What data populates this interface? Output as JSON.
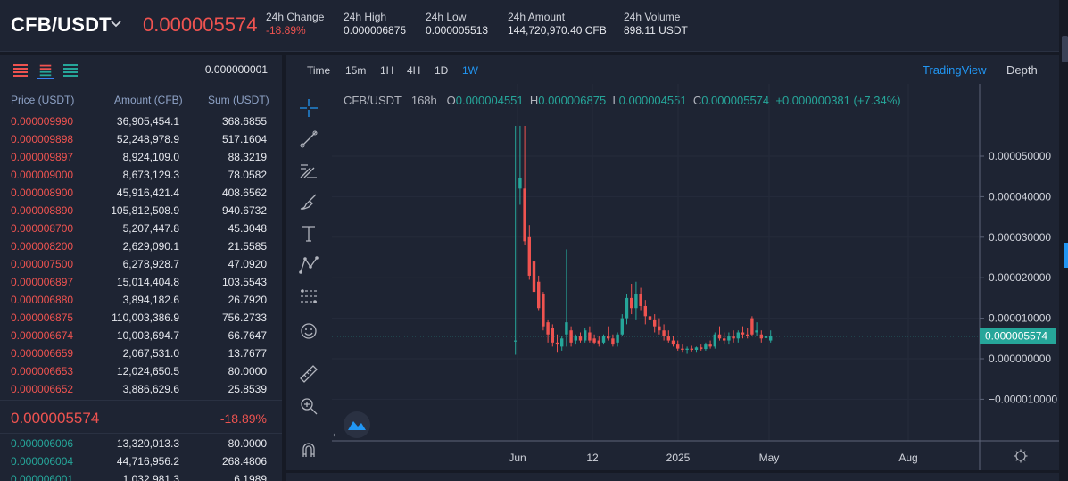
{
  "header": {
    "pair": "CFB/USDT",
    "last_price": "0.000005574",
    "stats": [
      {
        "label": "24h Change",
        "value": "-18.89%",
        "neg": true
      },
      {
        "label": "24h High",
        "value": "0.000006875",
        "neg": false
      },
      {
        "label": "24h Low",
        "value": "0.000005513",
        "neg": false
      },
      {
        "label": "24h Amount",
        "value": "144,720,970.40 CFB",
        "neg": false
      },
      {
        "label": "24h Volume",
        "value": "898.11 USDT",
        "neg": false
      }
    ]
  },
  "orderbook": {
    "precision": "0.000000001",
    "headers": {
      "price": "Price (USDT)",
      "amount": "Amount (CFB)",
      "sum": "Sum (USDT)"
    },
    "asks": [
      {
        "price": "0.000009990",
        "amount": "36,905,454.1",
        "sum": "368.6855"
      },
      {
        "price": "0.000009898",
        "amount": "52,248,978.9",
        "sum": "517.1604"
      },
      {
        "price": "0.000009897",
        "amount": "8,924,109.0",
        "sum": "88.3219"
      },
      {
        "price": "0.000009000",
        "amount": "8,673,129.3",
        "sum": "78.0582"
      },
      {
        "price": "0.000008900",
        "amount": "45,916,421.4",
        "sum": "408.6562"
      },
      {
        "price": "0.000008890",
        "amount": "105,812,508.9",
        "sum": "940.6732"
      },
      {
        "price": "0.000008700",
        "amount": "5,207,447.8",
        "sum": "45.3048"
      },
      {
        "price": "0.000008200",
        "amount": "2,629,090.1",
        "sum": "21.5585"
      },
      {
        "price": "0.000007500",
        "amount": "6,278,928.7",
        "sum": "47.0920"
      },
      {
        "price": "0.000006897",
        "amount": "15,014,404.8",
        "sum": "103.5543"
      },
      {
        "price": "0.000006880",
        "amount": "3,894,182.6",
        "sum": "26.7920"
      },
      {
        "price": "0.000006875",
        "amount": "110,003,386.9",
        "sum": "756.2733"
      },
      {
        "price": "0.000006674",
        "amount": "10,003,694.7",
        "sum": "66.7647"
      },
      {
        "price": "0.000006659",
        "amount": "2,067,531.0",
        "sum": "13.7677"
      },
      {
        "price": "0.000006653",
        "amount": "12,024,650.5",
        "sum": "80.0000"
      },
      {
        "price": "0.000006652",
        "amount": "3,886,629.6",
        "sum": "25.8539"
      }
    ],
    "mid": {
      "price": "0.000005574",
      "change": "-18.89%"
    },
    "bids": [
      {
        "price": "0.000006006",
        "amount": "13,320,013.3",
        "sum": "80.0000"
      },
      {
        "price": "0.000006004",
        "amount": "44,716,956.2",
        "sum": "268.4806"
      },
      {
        "price": "0.000006001",
        "amount": "1,032,981.3",
        "sum": "6.1989"
      }
    ]
  },
  "chart": {
    "timeframes": [
      {
        "label": "Time",
        "active": false
      },
      {
        "label": "15m",
        "active": false
      },
      {
        "label": "1H",
        "active": false
      },
      {
        "label": "4H",
        "active": false
      },
      {
        "label": "1D",
        "active": false
      },
      {
        "label": "1W",
        "active": true
      }
    ],
    "tabs": {
      "tradingview": "TradingView",
      "depth": "Depth"
    },
    "ohlc": {
      "symbol": "CFB/USDT",
      "interval": "168h",
      "o_label": "O",
      "o": "0.000004551",
      "h_label": "H",
      "h": "0.000006875",
      "l_label": "L",
      "l": "0.000004551",
      "c_label": "C",
      "c": "0.000005574",
      "change": "+0.000000381 (+7.34%)"
    },
    "tools": [
      "crosshair-icon",
      "trend-line-icon",
      "fib-icon",
      "brush-icon",
      "text-icon",
      "pattern-icon",
      "prediction-icon",
      "emoji-icon",
      "ruler-icon",
      "zoom-icon",
      "magnet-icon"
    ],
    "colors": {
      "up": "#26a69a",
      "down": "#ef5350",
      "accent": "#2196f3"
    }
  },
  "chart_data": {
    "type": "candlestick",
    "y_axis_labels": [
      "0.000050000",
      "0.000040000",
      "0.000030000",
      "0.000020000",
      "0.000010000",
      "0.000000000",
      "−0.000010000"
    ],
    "y_ticks": [
      5e-05,
      4e-05,
      3e-05,
      2e-05,
      1e-05,
      0,
      -1e-05
    ],
    "x_axis_labels": [
      "Jun",
      "12",
      "2025",
      "May",
      "Aug"
    ],
    "current_price_label": "0.000005574",
    "current_price": 5.574e-06,
    "ylim": [
      -1.5e-05,
      5.6e-05
    ],
    "candles": [
      {
        "o": 4.5e-06,
        "h": 5.75e-05,
        "l": 1e-06,
        "c": 4.5e-06
      },
      {
        "o": 4.2e-05,
        "h": 5.75e-05,
        "l": 3.8e-05,
        "c": 4.45e-05
      },
      {
        "o": 4.2e-05,
        "h": 5.75e-05,
        "l": 2.8e-05,
        "c": 2.9e-05
      },
      {
        "o": 3e-05,
        "h": 3.3e-05,
        "l": 1.95e-05,
        "c": 2.05e-05
      },
      {
        "o": 2.4e-05,
        "h": 2.45e-05,
        "l": 1.6e-05,
        "c": 1.65e-05
      },
      {
        "o": 1.9e-05,
        "h": 2.05e-05,
        "l": 1.2e-05,
        "c": 1.25e-05
      },
      {
        "o": 1.6e-05,
        "h": 1.65e-05,
        "l": 7e-06,
        "c": 8e-06
      },
      {
        "o": 9e-06,
        "h": 9.5e-06,
        "l": 4e-06,
        "c": 6e-06
      },
      {
        "o": 7.5e-06,
        "h": 8.5e-06,
        "l": 3e-06,
        "c": 4e-06
      },
      {
        "o": 4e-06,
        "h": 6e-06,
        "l": 1.5e-06,
        "c": 3.5e-06
      },
      {
        "o": 3e-06,
        "h": 5.5e-06,
        "l": 2e-06,
        "c": 5e-06
      },
      {
        "o": 6e-06,
        "h": 2.7e-05,
        "l": 3e-06,
        "c": 9e-06
      },
      {
        "o": 7e-06,
        "h": 8e-06,
        "l": 3e-06,
        "c": 4e-06
      },
      {
        "o": 4.5e-06,
        "h": 6e-06,
        "l": 3.5e-06,
        "c": 5.5e-06
      },
      {
        "o": 5.5e-06,
        "h": 6.5e-06,
        "l": 4e-06,
        "c": 4.5e-06
      },
      {
        "o": 4.5e-06,
        "h": 7.5e-06,
        "l": 4e-06,
        "c": 7e-06
      },
      {
        "o": 6.5e-06,
        "h": 8e-06,
        "l": 4e-06,
        "c": 4.5e-06
      },
      {
        "o": 5e-06,
        "h": 6e-06,
        "l": 3.5e-06,
        "c": 4e-06
      },
      {
        "o": 4.5e-06,
        "h": 5.5e-06,
        "l": 3e-06,
        "c": 3.8e-06
      },
      {
        "o": 4e-06,
        "h": 6e-06,
        "l": 3.5e-06,
        "c": 5.5e-06
      },
      {
        "o": 5.5e-06,
        "h": 8e-06,
        "l": 4.5e-06,
        "c": 5e-06
      },
      {
        "o": 5e-06,
        "h": 6e-06,
        "l": 3e-06,
        "c": 3.5e-06
      },
      {
        "o": 4e-06,
        "h": 6.5e-06,
        "l": 3e-06,
        "c": 6e-06
      },
      {
        "o": 6e-06,
        "h": 1.1e-05,
        "l": 5.5e-06,
        "c": 1e-05
      },
      {
        "o": 1e-05,
        "h": 1.6e-05,
        "l": 8.5e-06,
        "c": 1.5e-05
      },
      {
        "o": 1.5e-05,
        "h": 1.85e-05,
        "l": 1.1e-05,
        "c": 1.25e-05
      },
      {
        "o": 1.25e-05,
        "h": 1.9e-05,
        "l": 9.5e-06,
        "c": 1.6e-05
      },
      {
        "o": 1.6e-05,
        "h": 1.75e-05,
        "l": 1.2e-05,
        "c": 1.3e-05
      },
      {
        "o": 1.3e-05,
        "h": 1.45e-05,
        "l": 8.5e-06,
        "c": 1.05e-05
      },
      {
        "o": 1.05e-05,
        "h": 1.3e-05,
        "l": 8e-06,
        "c": 9.5e-06
      },
      {
        "o": 9.5e-06,
        "h": 1.1e-05,
        "l": 6.5e-06,
        "c": 8e-06
      },
      {
        "o": 8e-06,
        "h": 1e-05,
        "l": 6e-06,
        "c": 7e-06
      },
      {
        "o": 7e-06,
        "h": 8.5e-06,
        "l": 4.5e-06,
        "c": 5.5e-06
      },
      {
        "o": 5.5e-06,
        "h": 7e-06,
        "l": 4e-06,
        "c": 4.5e-06
      },
      {
        "o": 4.5e-06,
        "h": 5.5e-06,
        "l": 3e-06,
        "c": 3.5e-06
      },
      {
        "o": 3.5e-06,
        "h": 4.5e-06,
        "l": 2e-06,
        "c": 2.5e-06
      },
      {
        "o": 2.5e-06,
        "h": 3.5e-06,
        "l": 1.5e-06,
        "c": 2.2e-06
      },
      {
        "o": 2.2e-06,
        "h": 3e-06,
        "l": 1.2e-06,
        "c": 2.5e-06
      },
      {
        "o": 2.5e-06,
        "h": 3.2e-06,
        "l": 1.8e-06,
        "c": 2.2e-06
      },
      {
        "o": 2.2e-06,
        "h": 3e-06,
        "l": 1.5e-06,
        "c": 2.8e-06
      },
      {
        "o": 2.8e-06,
        "h": 3.5e-06,
        "l": 2e-06,
        "c": 2.4e-06
      },
      {
        "o": 2.4e-06,
        "h": 4e-06,
        "l": 2e-06,
        "c": 3.5e-06
      },
      {
        "o": 3.5e-06,
        "h": 4.5e-06,
        "l": 2.5e-06,
        "c": 3e-06
      },
      {
        "o": 3e-06,
        "h": 6.5e-06,
        "l": 2.5e-06,
        "c": 6e-06
      },
      {
        "o": 6e-06,
        "h": 8e-06,
        "l": 4.5e-06,
        "c": 5e-06
      },
      {
        "o": 5e-06,
        "h": 6.5e-06,
        "l": 3.5e-06,
        "c": 4.5e-06
      },
      {
        "o": 4.5e-06,
        "h": 6.5e-06,
        "l": 3.5e-06,
        "c": 5.5e-06
      },
      {
        "o": 5.5e-06,
        "h": 7e-06,
        "l": 4e-06,
        "c": 5e-06
      },
      {
        "o": 5e-06,
        "h": 7e-06,
        "l": 4e-06,
        "c": 6.5e-06
      },
      {
        "o": 6.5e-06,
        "h": 8e-06,
        "l": 5e-06,
        "c": 6e-06
      },
      {
        "o": 6e-06,
        "h": 7.5e-06,
        "l": 5e-06,
        "c": 5.8e-06
      },
      {
        "o": 1e-05,
        "h": 1.05e-05,
        "l": 5.5e-06,
        "c": 6e-06
      },
      {
        "o": 6.5e-06,
        "h": 9e-06,
        "l": 5.5e-06,
        "c": 7e-06
      },
      {
        "o": 6e-06,
        "h": 7e-06,
        "l": 4e-06,
        "c": 5e-06
      },
      {
        "o": 5.1e-06,
        "h": 7e-06,
        "l": 4e-06,
        "c": 5.6e-06
      },
      {
        "o": 4.5e-06,
        "h": 7e-06,
        "l": 4e-06,
        "c": 5.6e-06
      }
    ]
  }
}
